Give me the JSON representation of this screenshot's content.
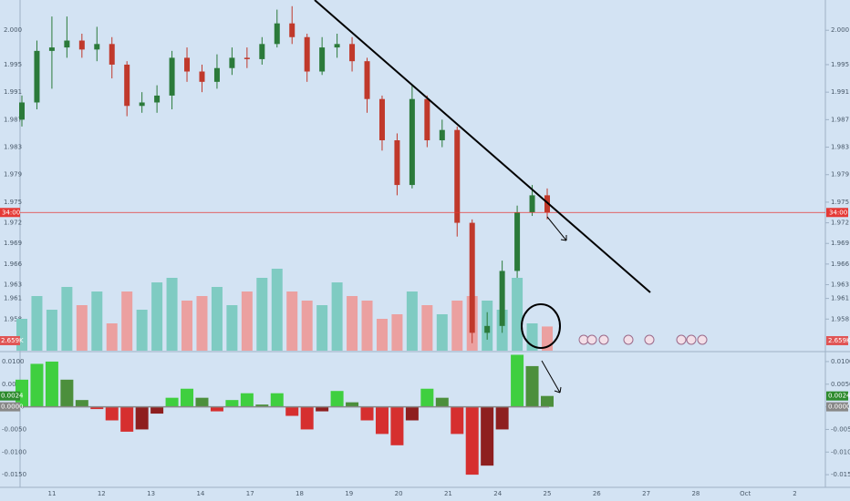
{
  "chart_data": {
    "type": "candlestick",
    "x_labels": [
      "11",
      "12",
      "13",
      "14",
      "17",
      "18",
      "19",
      "20",
      "21",
      "24",
      "25",
      "26",
      "27",
      "28",
      "Oct",
      "2"
    ],
    "open": [
      1.987,
      1.9895,
      1.997,
      1.9975,
      1.9985,
      1.9972,
      1.998,
      1.995,
      1.989,
      1.9895,
      1.9905,
      1.996,
      1.994,
      1.9925,
      1.9945,
      1.996,
      1.9958,
      1.998,
      2.001,
      1.999,
      1.994,
      1.9975,
      1.998,
      1.9955,
      1.99,
      1.984,
      1.9775,
      1.99,
      1.984,
      1.9855,
      1.972,
      1.956,
      1.957,
      1.965,
      1.9735,
      1.976
    ],
    "high": [
      1.9905,
      1.9985,
      2.002,
      2.002,
      1.9995,
      2.0005,
      1.999,
      1.9955,
      1.991,
      1.992,
      1.997,
      1.9975,
      1.995,
      1.9965,
      1.9975,
      1.9975,
      1.999,
      2.003,
      2.0035,
      1.9995,
      1.999,
      1.9995,
      1.999,
      1.996,
      1.9905,
      1.985,
      1.992,
      1.9905,
      1.987,
      1.986,
      1.9725,
      1.959,
      1.9665,
      1.9745,
      1.9775,
      1.977
    ],
    "low": [
      1.986,
      1.9885,
      1.9915,
      1.996,
      1.996,
      1.9955,
      1.993,
      1.9875,
      1.988,
      1.988,
      1.9885,
      1.9925,
      1.991,
      1.9915,
      1.9935,
      1.9945,
      1.995,
      1.9975,
      1.998,
      1.9925,
      1.9935,
      1.996,
      1.994,
      1.988,
      1.9825,
      1.976,
      1.977,
      1.983,
      1.983,
      1.97,
      1.9545,
      1.955,
      1.956,
      1.964,
      1.973,
      1.9725
    ],
    "close": [
      1.9895,
      1.997,
      1.9975,
      1.9985,
      1.9972,
      1.998,
      1.995,
      1.989,
      1.9895,
      1.9905,
      1.996,
      1.994,
      1.9925,
      1.9945,
      1.996,
      1.9958,
      1.998,
      2.001,
      1.999,
      1.994,
      1.9975,
      1.998,
      1.9955,
      1.99,
      1.984,
      1.9775,
      1.99,
      1.984,
      1.9855,
      1.972,
      1.956,
      1.957,
      1.965,
      1.9735,
      1.976,
      1.9735
    ],
    "up_color": "#2b7a3a",
    "down_color": "#c0392b",
    "ylim": [
      1.9534,
      2.0044
    ],
    "yticks": [
      {
        "value": 2.0,
        "label": "2.000"
      },
      {
        "value": 1.995,
        "label": "1.995"
      },
      {
        "value": 1.991,
        "label": "1.991"
      },
      {
        "value": 1.987,
        "label": "1.987"
      },
      {
        "value": 1.983,
        "label": "1.983"
      },
      {
        "value": 1.979,
        "label": "1.979"
      },
      {
        "value": 1.975,
        "label": "1.975"
      },
      {
        "value": 1.972,
        "label": "1.972"
      },
      {
        "value": 1.969,
        "label": "1.969"
      },
      {
        "value": 1.966,
        "label": "1.966"
      },
      {
        "value": 1.963,
        "label": "1.963"
      },
      {
        "value": 1.961,
        "label": "1.961"
      },
      {
        "value": 1.958,
        "label": "1.958"
      }
    ],
    "price_line": {
      "label": "34:00",
      "color": "#e53935"
    },
    "volume": {
      "values": [
        3500,
        6000,
        4500,
        7000,
        5000,
        6500,
        3000,
        6500,
        4500,
        7500,
        8000,
        5500,
        6000,
        7000,
        5000,
        6500,
        8000,
        9000,
        6500,
        5500,
        5000,
        7500,
        6000,
        5500,
        3500,
        4000,
        6500,
        5000,
        4000,
        5500,
        6000,
        5500,
        4500,
        8000,
        3000,
        2659
      ],
      "ylim": [
        0,
        10000
      ],
      "last_label": "2.659K",
      "up_color": "#7fcbc2",
      "down_color": "#eba0a0"
    },
    "oscillator": {
      "values": [
        0.006,
        0.0095,
        0.01,
        0.006,
        0.0015,
        -0.0005,
        -0.003,
        -0.0055,
        -0.005,
        -0.0015,
        0.002,
        0.004,
        0.002,
        -0.001,
        0.0015,
        0.003,
        0.0005,
        0.003,
        -0.002,
        -0.005,
        -0.001,
        0.0035,
        0.001,
        -0.003,
        -0.006,
        -0.0085,
        -0.003,
        0.004,
        0.002,
        -0.006,
        -0.015,
        -0.013,
        -0.005,
        0.0115,
        0.009,
        0.0024
      ],
      "ylim": [
        -0.0178,
        0.0118
      ],
      "yticks": [
        {
          "value": 0.01,
          "label": "0.0100"
        },
        {
          "value": 0.005,
          "label": "0.0050"
        },
        {
          "value": 0,
          "label": "0.0000"
        },
        {
          "value": -0.005,
          "label": "-0.0050"
        },
        {
          "value": -0.01,
          "label": "-0.0100"
        },
        {
          "value": -0.015,
          "label": "-0.0150"
        }
      ],
      "last_label": "0.0024",
      "zero_label": "0.0000",
      "pos_color": "#3fcf3f",
      "neg_color": "#d62f2f"
    }
  }
}
